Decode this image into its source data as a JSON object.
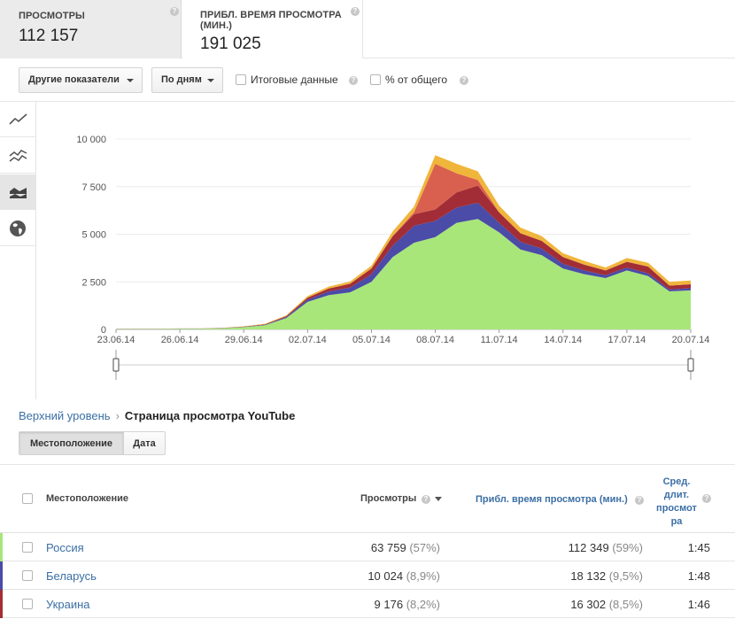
{
  "metrics": [
    {
      "label": "ПРОСМОТРЫ",
      "value": "112 157"
    },
    {
      "label_line1": "ПРИБЛ. ВРЕМЯ ПРОСМОТРА",
      "label_line2": "(МИН.)",
      "value": "191 025"
    }
  ],
  "toolbar": {
    "other_metrics": "Другие показатели",
    "by_days": "По дням",
    "totals": "Итоговые данные",
    "percent_total": "% от общего"
  },
  "tools": [
    "line-chart-icon",
    "multi-line-icon",
    "stacked-area-icon",
    "map-icon"
  ],
  "chart_data": {
    "type": "area",
    "stacked": true,
    "x": [
      "23.06.14",
      "24.06.14",
      "25.06.14",
      "26.06.14",
      "27.06.14",
      "28.06.14",
      "29.06.14",
      "30.06.14",
      "01.07.14",
      "02.07.14",
      "03.07.14",
      "04.07.14",
      "05.07.14",
      "06.07.14",
      "07.07.14",
      "08.07.14",
      "09.07.14",
      "10.07.14",
      "11.07.14",
      "12.07.14",
      "13.07.14",
      "14.07.14",
      "15.07.14",
      "16.07.14",
      "17.07.14",
      "18.07.14",
      "19.07.14",
      "20.07.14"
    ],
    "xticks": [
      "23.06.14",
      "26.06.14",
      "29.06.14",
      "02.07.14",
      "05.07.14",
      "08.07.14",
      "11.07.14",
      "14.07.14",
      "17.07.14",
      "20.07.14"
    ],
    "yticks": [
      "0",
      "2 500",
      "5 000",
      "7 500",
      "10 000"
    ],
    "ylim": [
      0,
      10000
    ],
    "series": [
      {
        "name": "Россия",
        "color": "#a8e67a",
        "values": [
          20,
          20,
          20,
          40,
          40,
          60,
          120,
          220,
          600,
          1450,
          1800,
          1950,
          2500,
          3800,
          4550,
          4850,
          5600,
          5800,
          5100,
          4200,
          3900,
          3200,
          2900,
          2700,
          3100,
          2800,
          2000,
          2050
        ]
      },
      {
        "name": "Беларусь",
        "color": "#4b4ba8",
        "values": [
          5,
          5,
          5,
          5,
          5,
          8,
          15,
          25,
          50,
          120,
          200,
          250,
          400,
          600,
          900,
          850,
          800,
          850,
          500,
          400,
          350,
          250,
          200,
          150,
          150,
          150,
          100,
          120
        ]
      },
      {
        "name": "Украина",
        "color": "#a22d36",
        "values": [
          5,
          5,
          5,
          5,
          5,
          8,
          15,
          25,
          50,
          100,
          150,
          200,
          300,
          500,
          600,
          600,
          800,
          900,
          550,
          450,
          400,
          350,
          300,
          250,
          300,
          350,
          200,
          200
        ]
      },
      {
        "name": "",
        "color": "#d9604e",
        "values": [
          0,
          0,
          0,
          0,
          0,
          0,
          0,
          0,
          0,
          0,
          0,
          0,
          0,
          0,
          100,
          2400,
          1000,
          300,
          0,
          0,
          0,
          0,
          0,
          0,
          0,
          0,
          0,
          0
        ]
      },
      {
        "name": "",
        "color": "#f0b53b",
        "values": [
          5,
          5,
          5,
          5,
          5,
          10,
          15,
          25,
          40,
          80,
          100,
          120,
          150,
          250,
          300,
          450,
          500,
          450,
          350,
          300,
          250,
          200,
          200,
          150,
          200,
          200,
          200,
          200
        ]
      }
    ]
  },
  "breadcrumb": {
    "top": "Верхний уровень",
    "current": "Страница просмотра YouTube"
  },
  "tabs": [
    "Местоположение",
    "Дата"
  ],
  "table": {
    "headers": {
      "location": "Местоположение",
      "views": "Просмотры",
      "watch_time": "Прибл. время просмотра (мин.)",
      "avg_line1": "Сред.",
      "avg_line2": "длит.",
      "avg_line3": "просмот",
      "avg_line4": "ра"
    },
    "rows": [
      {
        "location": "Россия",
        "views": "63 759",
        "views_pct": "(57%)",
        "time": "112 349",
        "time_pct": "(59%)",
        "avg": "1:45",
        "color": "#a8e67a"
      },
      {
        "location": "Беларусь",
        "views": "10 024",
        "views_pct": "(8,9%)",
        "time": "18 132",
        "time_pct": "(9,5%)",
        "avg": "1:48",
        "color": "#4b4ba8"
      },
      {
        "location": "Украина",
        "views": "9 176",
        "views_pct": "(8,2%)",
        "time": "16 302",
        "time_pct": "(8,5%)",
        "avg": "1:46",
        "color": "#a22d36"
      }
    ]
  }
}
